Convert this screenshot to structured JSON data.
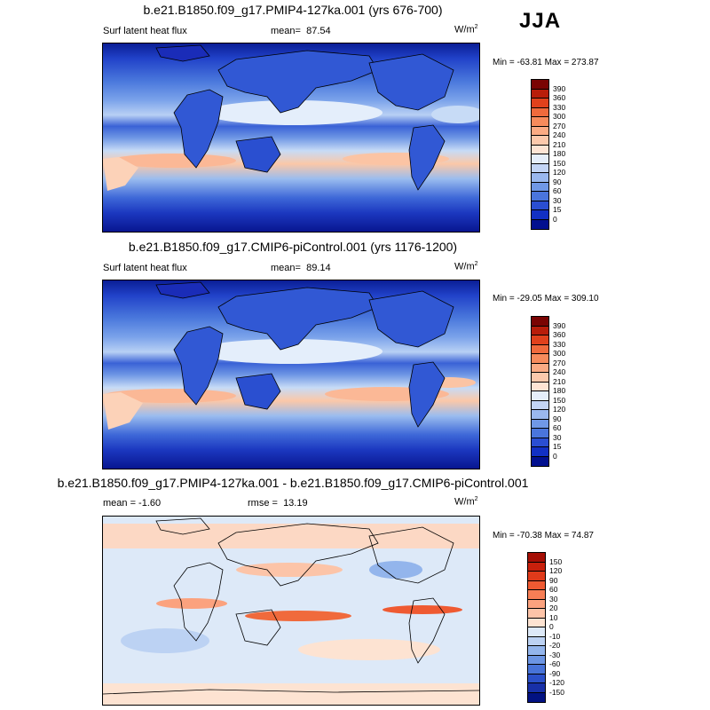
{
  "season": "JJA",
  "panels": [
    {
      "title": "b.e21.B1850.f09_g17.PMIP4-127ka.001 (yrs 676-700)",
      "left_label": "Surf latent heat flux",
      "stat1_label": "mean=",
      "stat1_value": "87.54",
      "units": "W/m",
      "units_sup": "2",
      "min_max": "Min = -63.81 Max = 273.87",
      "palette": "flux",
      "colorbar": {
        "labels": [
          "390",
          "360",
          "330",
          "300",
          "270",
          "240",
          "210",
          "180",
          "150",
          "120",
          "90",
          "60",
          "30",
          "15",
          "0"
        ],
        "colors": [
          "#7a0403",
          "#b81d0a",
          "#e0411c",
          "#f06a3c",
          "#f78b5c",
          "#fbab84",
          "#fcc9ac",
          "#fde4d4",
          "#e5eefa",
          "#c3d5f5",
          "#9ab8ee",
          "#7098e6",
          "#4a75dc",
          "#2a4ed2",
          "#1230c4",
          "#02108f"
        ]
      }
    },
    {
      "title": "b.e21.B1850.f09_g17.CMIP6-piControl.001 (yrs 1176-1200)",
      "left_label": "Surf latent heat flux",
      "stat1_label": "mean=",
      "stat1_value": "89.14",
      "units": "W/m",
      "units_sup": "2",
      "min_max": "Min = -29.05 Max = 309.10",
      "palette": "flux",
      "colorbar": {
        "labels": [
          "390",
          "360",
          "330",
          "300",
          "270",
          "240",
          "210",
          "180",
          "150",
          "120",
          "90",
          "60",
          "30",
          "15",
          "0"
        ],
        "colors": [
          "#7a0403",
          "#b81d0a",
          "#e0411c",
          "#f06a3c",
          "#f78b5c",
          "#fbab84",
          "#fcc9ac",
          "#fde4d4",
          "#e5eefa",
          "#c3d5f5",
          "#9ab8ee",
          "#7098e6",
          "#4a75dc",
          "#2a4ed2",
          "#1230c4",
          "#02108f"
        ]
      }
    },
    {
      "title": "b.e21.B1850.f09_g17.PMIP4-127ka.001 - b.e21.B1850.f09_g17.CMIP6-piControl.001",
      "left_label": "mean =  -1.60",
      "stat1_label": "rmse =",
      "stat1_value": "13.19",
      "units": "W/m",
      "units_sup": "2",
      "min_max": "Min = -70.38 Max =  74.87",
      "palette": "diff",
      "colorbar": {
        "labels": [
          "150",
          "120",
          "90",
          "60",
          "30",
          "20",
          "10",
          "0",
          "-10",
          "-20",
          "-30",
          "-60",
          "-90",
          "-120",
          "-150"
        ],
        "colors": [
          "#a50f05",
          "#c8200c",
          "#e03a1a",
          "#ef5a32",
          "#f77e55",
          "#fba27e",
          "#fdc4a8",
          "#fde3d2",
          "#dde9f8",
          "#bcd2f3",
          "#93b5ec",
          "#6c95e3",
          "#4873d8",
          "#2b50c9",
          "#1830a8",
          "#021282"
        ]
      }
    }
  ]
}
